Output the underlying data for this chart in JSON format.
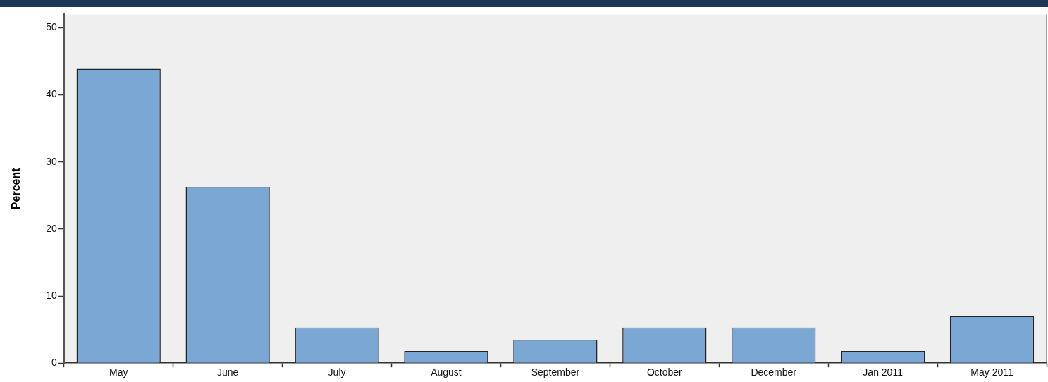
{
  "chart_data": {
    "type": "bar",
    "ylabel": "Percent",
    "categories": [
      "May",
      "June",
      "July",
      "August",
      "September",
      "October",
      "December",
      "Jan 2011",
      "May 2011"
    ],
    "values": [
      43.9,
      26.3,
      5.3,
      1.8,
      3.5,
      5.3,
      5.3,
      1.8,
      7.0
    ],
    "color": "#7ba7d5",
    "ylim": [
      0,
      52
    ],
    "yticks": [
      0,
      10,
      20,
      30,
      40,
      50
    ],
    "grid": false,
    "legend": false
  }
}
